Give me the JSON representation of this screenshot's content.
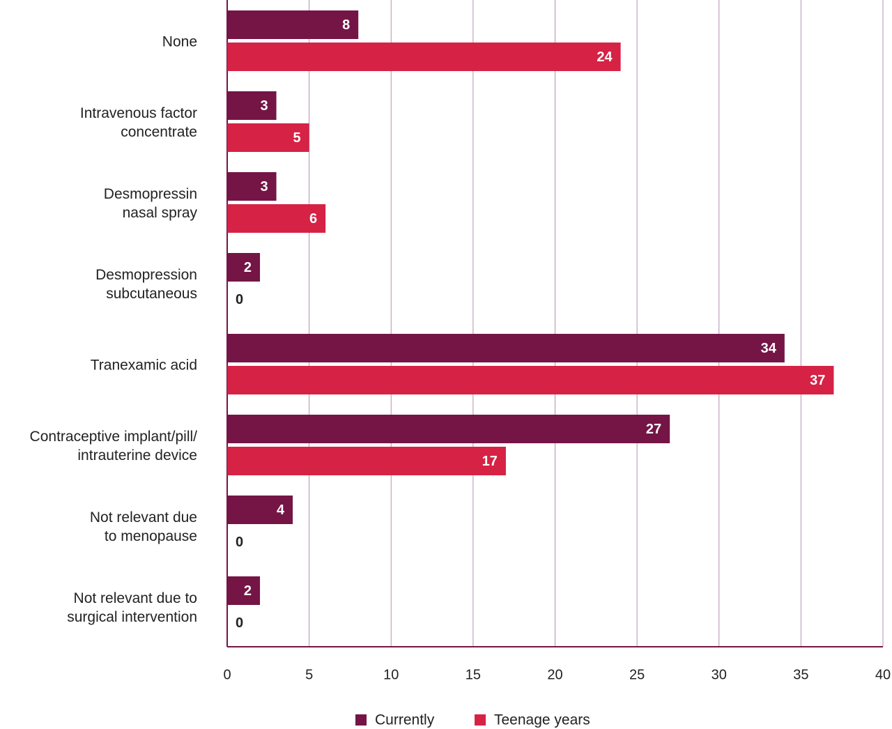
{
  "chart_data": {
    "type": "bar",
    "orientation": "horizontal",
    "categories": [
      "None",
      "Intravenous factor\nconcentrate",
      "Desmopressin\nnasal spray",
      "Desmopression\nsubcutaneous",
      "Tranexamic acid",
      "Contraceptive implant/pill/\nintrauterine device",
      "Not relevant due\nto menopause",
      "Not relevant due to\nsurgical intervention"
    ],
    "series": [
      {
        "name": "Currently",
        "color": "#741546",
        "values": [
          8,
          3,
          3,
          2,
          34,
          27,
          4,
          2
        ]
      },
      {
        "name": "Teenage years",
        "color": "#d62245",
        "values": [
          24,
          5,
          6,
          0,
          37,
          17,
          0,
          0
        ]
      }
    ],
    "xlim": [
      0,
      40
    ],
    "xticks": [
      0,
      5,
      10,
      15,
      20,
      25,
      30,
      35,
      40
    ],
    "grid": true,
    "legend": "bottom"
  }
}
